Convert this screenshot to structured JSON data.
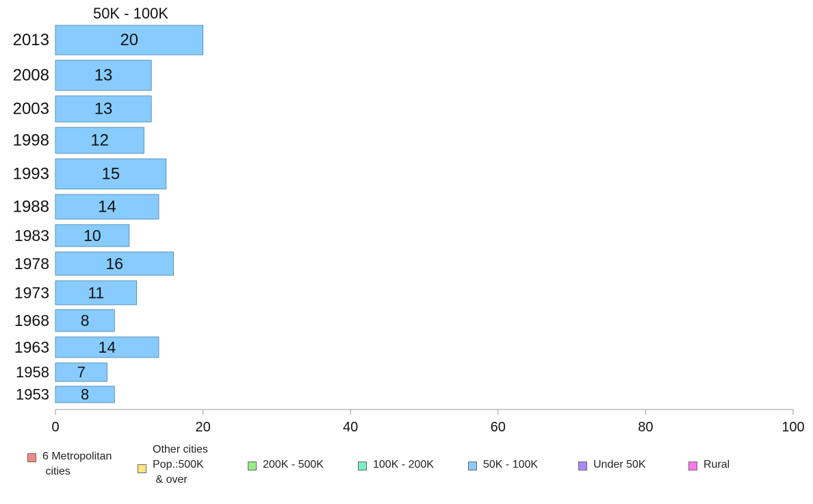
{
  "chart_data": {
    "type": "bar",
    "orientation": "horizontal",
    "title": "50K - 100K",
    "categories": [
      "2013",
      "2008",
      "2003",
      "1998",
      "1993",
      "1988",
      "1983",
      "1978",
      "1973",
      "1968",
      "1963",
      "1958",
      "1953"
    ],
    "values": [
      20,
      13,
      13,
      12,
      15,
      14,
      10,
      16,
      11,
      8,
      14,
      7,
      8
    ],
    "xlim": [
      0,
      100
    ],
    "xticks": [
      0,
      20,
      40,
      60,
      80,
      100
    ],
    "grid": false,
    "bar_color": "#88ccff",
    "bar_edge_color": "#5a8fb5"
  },
  "legend": {
    "placement": "bottom",
    "items": [
      {
        "label": "6 Metropolitan\n cities",
        "color": "#f08a84"
      },
      {
        "label": "Other cities\nPop.:500K\n & over",
        "color": "#ffe680"
      },
      {
        "label": "200K - 500K",
        "color": "#99ee88"
      },
      {
        "label": "100K - 200K",
        "color": "#77eec4"
      },
      {
        "label": "50K - 100K",
        "color": "#88ccff"
      },
      {
        "label": "Under 50K",
        "color": "#aa88ff"
      },
      {
        "label": "Rural",
        "color": "#ff77ee"
      }
    ]
  }
}
